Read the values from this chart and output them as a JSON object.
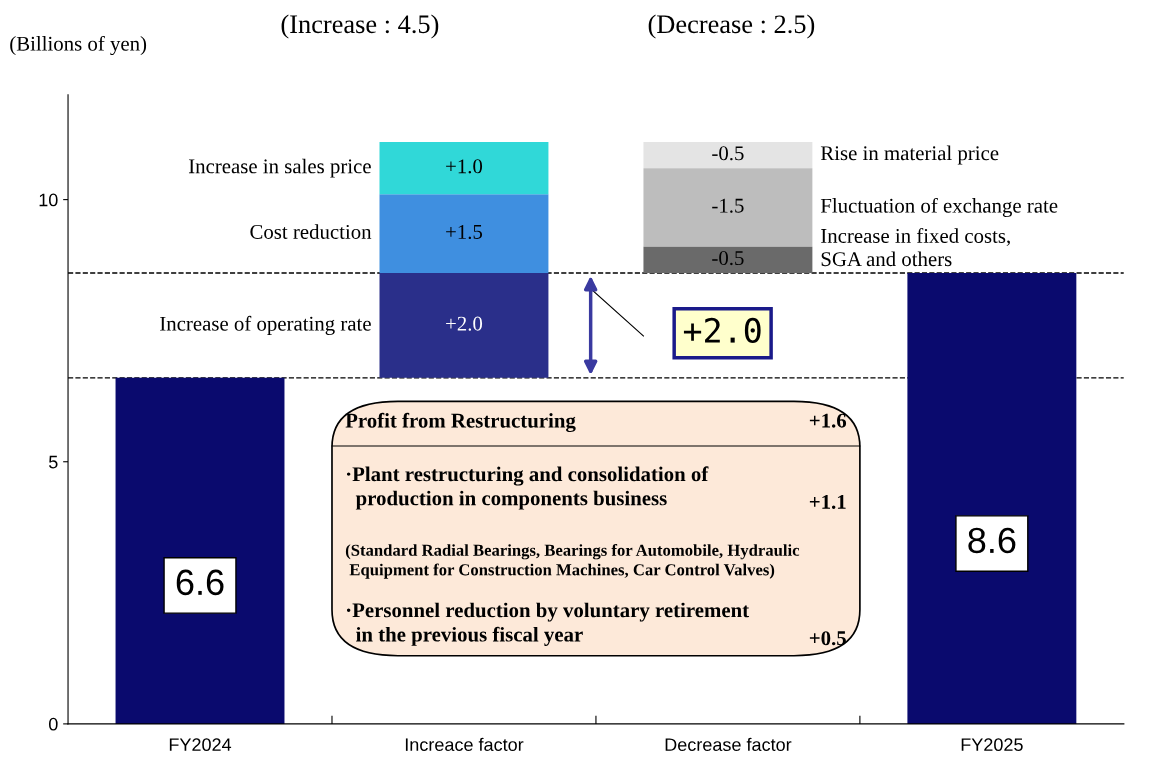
{
  "chart_data": {
    "type": "bar",
    "ylabel": "(Billions of yen)",
    "categories": [
      "FY2024",
      "Increace factor",
      "Decrease factor",
      "FY2025"
    ],
    "ylim": [
      0,
      12
    ],
    "yticks": [
      0,
      5,
      10
    ],
    "grid": false,
    "legend": false,
    "series": [
      {
        "color": "#0a0a6e",
        "values": [
          6.6,
          null,
          null,
          8.6
        ],
        "base": [
          0,
          null,
          null,
          0
        ],
        "value_labels": [
          "6.6",
          null,
          null,
          "8.6"
        ]
      },
      {
        "name": "Increase of operating rate",
        "color": "#2a2f8a",
        "values": [
          null,
          2.0,
          null,
          null
        ],
        "base": [
          null,
          6.6,
          null,
          null
        ],
        "value_labels": [
          null,
          "+2.0",
          null,
          null
        ]
      },
      {
        "name": "Cost reduction",
        "color": "#3f8fe0",
        "values": [
          null,
          1.5,
          null,
          null
        ],
        "base": [
          null,
          8.6,
          null,
          null
        ],
        "value_labels": [
          null,
          "+1.5",
          null,
          null
        ]
      },
      {
        "name": "Increase in sales price",
        "color": "#30d8d8",
        "values": [
          null,
          1.0,
          null,
          null
        ],
        "base": [
          null,
          10.1,
          null,
          null
        ],
        "value_labels": [
          null,
          "+1.0",
          null,
          null
        ]
      },
      {
        "name": "Rise in material price",
        "color": "#e4e4e4",
        "values": [
          null,
          null,
          -0.5,
          null
        ],
        "base": [
          null,
          null,
          11.1,
          null
        ],
        "value_labels": [
          null,
          null,
          "-0.5",
          null
        ]
      },
      {
        "name": "Fluctuation of exchange rate",
        "color": "#bdbdbd",
        "values": [
          null,
          null,
          -1.5,
          null
        ],
        "base": [
          null,
          null,
          10.6,
          null
        ],
        "value_labels": [
          null,
          null,
          "-1.5",
          null
        ]
      },
      {
        "name": "Increase in fixed costs,\nSGA and others",
        "color": "#6a6a6a",
        "values": [
          null,
          null,
          -0.5,
          null
        ],
        "base": [
          null,
          null,
          9.1,
          null
        ],
        "value_labels": [
          null,
          null,
          "-0.5",
          null
        ]
      }
    ],
    "ref_lines": [
      {
        "axis": "y",
        "value": 6.6,
        "line_style": "dashed",
        "color": "#000000"
      },
      {
        "axis": "y",
        "value": 8.6,
        "line_style": "dashed",
        "color": "#000000"
      }
    ],
    "annotations": [
      "(Increase : 4.5)",
      "(Decrease : 2.5)",
      "+2.0",
      "Profit from Restructuring",
      "+1.6",
      "·Plant restructuring and consolidation of\n  production in components business",
      "+1.1",
      "(Standard Radial Bearings, Bearings for Automobile, Hydraulic\n Equipment for Construction Machines, Car Control Valves)",
      "·Personnel reduction by voluntary retirement\n  in the previous fiscal year",
      "+0.5"
    ]
  }
}
